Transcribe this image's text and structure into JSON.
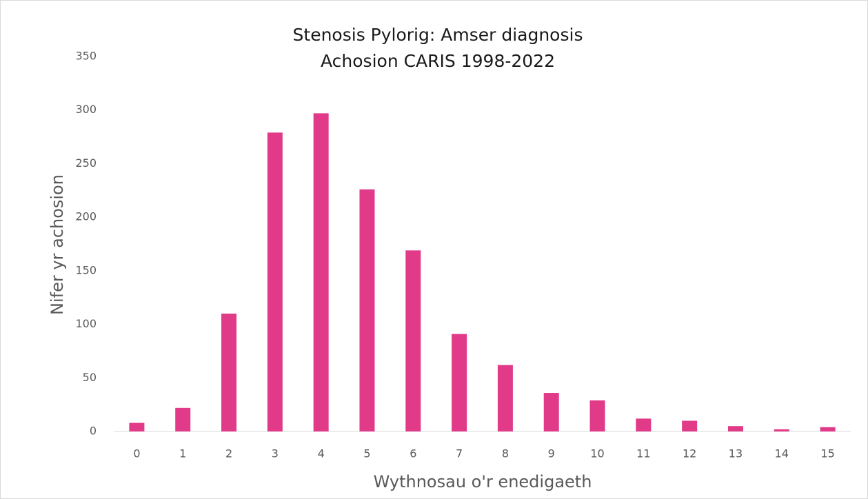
{
  "chart_data": {
    "type": "bar",
    "title": [
      "Stenosis Pylorig: Amser diagnosis",
      "Achosion CARIS 1998-2022"
    ],
    "x_label": "Wythnosau o'r enedigaeth",
    "y_label": "Nifer yr achosion",
    "categories": [
      "0",
      "1",
      "2",
      "3",
      "4",
      "5",
      "6",
      "7",
      "8",
      "9",
      "10",
      "11",
      "12",
      "13",
      "14",
      "15"
    ],
    "values": [
      8,
      22,
      110,
      279,
      297,
      226,
      169,
      91,
      62,
      36,
      29,
      12,
      10,
      5,
      2,
      4
    ],
    "color": "#e03a88",
    "ylim": [
      0,
      350
    ],
    "yticks": [
      0,
      50,
      100,
      150,
      200,
      250,
      300,
      350
    ],
    "grid": false
  }
}
